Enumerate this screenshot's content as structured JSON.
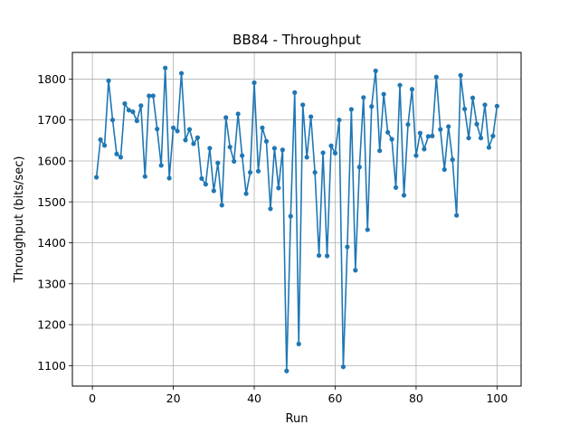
{
  "chart_data": {
    "type": "line",
    "title": "BB84 - Throughput",
    "xlabel": "Run",
    "ylabel": "Throughput (bits/sec)",
    "xlim": [
      -4.95,
      105.95
    ],
    "ylim": [
      1050,
      1865
    ],
    "xticks": [
      0,
      20,
      40,
      60,
      80,
      100
    ],
    "yticks": [
      1100,
      1200,
      1300,
      1400,
      1500,
      1600,
      1700,
      1800
    ],
    "grid": true,
    "marker": "circle",
    "line_color": "#1f77b4",
    "x": [
      1,
      2,
      3,
      4,
      5,
      6,
      7,
      8,
      9,
      10,
      11,
      12,
      13,
      14,
      15,
      16,
      17,
      18,
      19,
      20,
      21,
      22,
      23,
      24,
      25,
      26,
      27,
      28,
      29,
      30,
      31,
      32,
      33,
      34,
      35,
      36,
      37,
      38,
      39,
      40,
      41,
      42,
      43,
      44,
      45,
      46,
      47,
      48,
      49,
      50,
      51,
      52,
      53,
      54,
      55,
      56,
      57,
      58,
      59,
      60,
      61,
      62,
      63,
      64,
      65,
      66,
      67,
      68,
      69,
      70,
      71,
      72,
      73,
      74,
      75,
      76,
      77,
      78,
      79,
      80,
      81,
      82,
      83,
      84,
      85,
      86,
      87,
      88,
      89,
      90,
      91,
      92,
      93,
      94,
      95,
      96,
      97,
      98,
      99,
      100
    ],
    "y": [
      1560,
      1652,
      1638,
      1796,
      1700,
      1617,
      1609,
      1740,
      1724,
      1720,
      1698,
      1735,
      1562,
      1759,
      1759,
      1678,
      1589,
      1827,
      1558,
      1681,
      1673,
      1814,
      1651,
      1677,
      1642,
      1657,
      1557,
      1543,
      1631,
      1527,
      1595,
      1492,
      1706,
      1634,
      1599,
      1715,
      1613,
      1520,
      1572,
      1791,
      1575,
      1681,
      1648,
      1483,
      1631,
      1534,
      1627,
      1087,
      1465,
      1767,
      1153,
      1737,
      1609,
      1708,
      1572,
      1369,
      1620,
      1368,
      1637,
      1619,
      1700,
      1097,
      1390,
      1726,
      1333,
      1585,
      1755,
      1432,
      1733,
      1820,
      1625,
      1763,
      1670,
      1653,
      1535,
      1785,
      1516,
      1689,
      1775,
      1613,
      1668,
      1629,
      1660,
      1661,
      1805,
      1677,
      1579,
      1684,
      1603,
      1467,
      1809,
      1727,
      1656,
      1754,
      1690,
      1656,
      1737,
      1633,
      1661,
      1734
    ]
  }
}
